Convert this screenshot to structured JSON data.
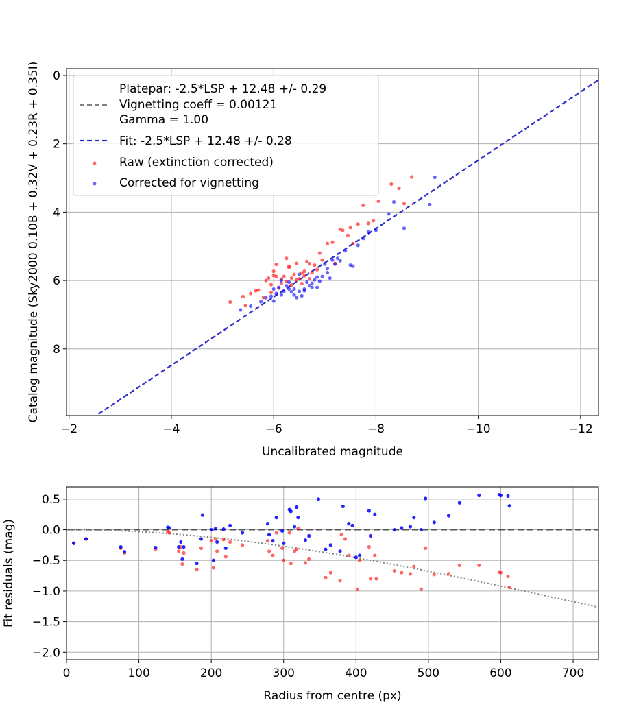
{
  "chart_data": [
    {
      "type": "scatter",
      "title": "",
      "xlabel": "Uncalibrated magnitude",
      "ylabel": "Catalog magnitude (Sky2000 0.10B + 0.32V + 0.23R + 0.35I)",
      "xlim": [
        -1.95,
        -12.35
      ],
      "ylim": [
        9.95,
        -0.2
      ],
      "x_inverted": true,
      "y_inverted": true,
      "grid": true,
      "legend_position": "upper-left",
      "xticks": [
        -2,
        -4,
        -6,
        -8,
        -10,
        -12
      ],
      "xtick_labels": [
        "−2",
        "−4",
        "−6",
        "−8",
        "−10",
        "−12"
      ],
      "yticks": [
        0,
        2,
        4,
        6,
        8
      ],
      "ytick_labels": [
        "0",
        "2",
        "4",
        "6",
        "8"
      ],
      "legend": [
        {
          "label": "Platepar: -2.5*LSP + 12.48 +/- 0.29",
          "kind": "none"
        },
        {
          "label": "Vignetting coeff = 0.00121",
          "kind": "line",
          "color": "#808080",
          "dash": "7,4"
        },
        {
          "label": "Gamma = 1.00",
          "kind": "none"
        },
        {
          "label": "Fit: -2.5*LSP + 12.48 +/- 0.28",
          "kind": "line",
          "color": "#2f2fd2",
          "dash": "7,4"
        },
        {
          "label": "Raw (extinction corrected)",
          "kind": "marker",
          "color": "#ff0000"
        },
        {
          "label": "Corrected for vignetting",
          "kind": "marker",
          "color": "#0000ff"
        }
      ],
      "lines": [
        {
          "name": "Platepar",
          "slope": 1,
          "intercept": 12.48,
          "color": "#808080",
          "dash": "7,4"
        },
        {
          "name": "Fit",
          "slope": 1,
          "intercept": 12.48,
          "color": "#2f2fd2",
          "dash": "7,4"
        }
      ],
      "series": [
        {
          "name": "Raw (extinction corrected)",
          "color": "#ff0000",
          "points": [
            [
              -5.15,
              6.63
            ],
            [
              -5.4,
              6.47
            ],
            [
              -5.45,
              6.73
            ],
            [
              -5.55,
              6.38
            ],
            [
              -5.65,
              6.3
            ],
            [
              -5.7,
              6.28
            ],
            [
              -5.8,
              6.5
            ],
            [
              -5.85,
              6.0
            ],
            [
              -5.9,
              5.93
            ],
            [
              -5.95,
              6.12
            ],
            [
              -6.0,
              5.73
            ],
            [
              -6.0,
              5.85
            ],
            [
              -6.05,
              5.53
            ],
            [
              -6.1,
              6.22
            ],
            [
              -6.15,
              5.96
            ],
            [
              -6.2,
              5.88
            ],
            [
              -6.25,
              5.35
            ],
            [
              -6.3,
              5.62
            ],
            [
              -6.3,
              5.58
            ],
            [
              -6.35,
              5.93
            ],
            [
              -6.4,
              5.82
            ],
            [
              -6.45,
              5.5
            ],
            [
              -6.5,
              5.95
            ],
            [
              -6.55,
              6.09
            ],
            [
              -6.6,
              5.73
            ],
            [
              -6.65,
              5.44
            ],
            [
              -6.7,
              5.51
            ],
            [
              -6.75,
              5.77
            ],
            [
              -6.8,
              5.55
            ],
            [
              -6.85,
              5.68
            ],
            [
              -6.9,
              5.2
            ],
            [
              -6.95,
              5.4
            ],
            [
              -7.05,
              4.92
            ],
            [
              -7.15,
              4.88
            ],
            [
              -7.2,
              5.5
            ],
            [
              -7.3,
              4.5
            ],
            [
              -7.35,
              4.53
            ],
            [
              -7.45,
              4.68
            ],
            [
              -7.5,
              4.45
            ],
            [
              -7.55,
              4.92
            ],
            [
              -7.65,
              4.35
            ],
            [
              -7.75,
              3.8
            ],
            [
              -7.85,
              4.33
            ],
            [
              -7.95,
              4.25
            ],
            [
              -8.05,
              3.68
            ],
            [
              -8.3,
              3.18
            ],
            [
              -8.45,
              3.3
            ],
            [
              -8.55,
              3.75
            ],
            [
              -8.7,
              2.97
            ],
            [
              -6.15,
              6.08
            ],
            [
              -6.35,
              6.13
            ],
            [
              -6.45,
              5.98
            ],
            [
              -6.6,
              5.86
            ],
            [
              -6.7,
              5.95
            ],
            [
              -6.25,
              6.03
            ],
            [
              -5.95,
              6.35
            ],
            [
              -6.05,
              5.88
            ],
            [
              -6.55,
              5.78
            ]
          ]
        },
        {
          "name": "Corrected for vignetting",
          "color": "#0000ff",
          "points": [
            [
              -5.35,
              6.86
            ],
            [
              -5.55,
              6.75
            ],
            [
              -5.75,
              6.62
            ],
            [
              -5.85,
              6.5
            ],
            [
              -5.95,
              6.46
            ],
            [
              -6.0,
              6.6
            ],
            [
              -6.05,
              6.38
            ],
            [
              -6.1,
              6.2
            ],
            [
              -6.15,
              6.0
            ],
            [
              -6.2,
              6.32
            ],
            [
              -6.25,
              6.15
            ],
            [
              -6.3,
              6.25
            ],
            [
              -6.35,
              6.33
            ],
            [
              -6.4,
              6.42
            ],
            [
              -6.45,
              6.5
            ],
            [
              -6.5,
              6.32
            ],
            [
              -6.5,
              5.82
            ],
            [
              -6.55,
              6.45
            ],
            [
              -6.6,
              6.25
            ],
            [
              -6.65,
              6.05
            ],
            [
              -6.7,
              6.15
            ],
            [
              -6.75,
              6.08
            ],
            [
              -6.8,
              5.98
            ],
            [
              -6.85,
              6.2
            ],
            [
              -6.9,
              6.02
            ],
            [
              -6.95,
              5.88
            ],
            [
              -7.0,
              5.52
            ],
            [
              -7.05,
              5.77
            ],
            [
              -7.1,
              5.93
            ],
            [
              -7.15,
              5.4
            ],
            [
              -7.2,
              5.52
            ],
            [
              -7.25,
              5.35
            ],
            [
              -7.3,
              5.42
            ],
            [
              -7.4,
              5.13
            ],
            [
              -7.5,
              5.55
            ],
            [
              -7.55,
              5.58
            ],
            [
              -7.65,
              4.97
            ],
            [
              -7.75,
              4.77
            ],
            [
              -7.85,
              4.58
            ],
            [
              -8.0,
              4.53
            ],
            [
              -8.25,
              4.05
            ],
            [
              -8.35,
              3.7
            ],
            [
              -8.55,
              4.47
            ],
            [
              -9.05,
              3.78
            ],
            [
              -9.15,
              2.98
            ],
            [
              -6.3,
              6.05
            ],
            [
              -6.4,
              6.25
            ],
            [
              -6.6,
              6.3
            ],
            [
              -6.15,
              6.42
            ],
            [
              -6.75,
              6.2
            ],
            [
              -6.0,
              6.25
            ],
            [
              -6.85,
              5.9
            ],
            [
              -7.05,
              5.65
            ]
          ]
        }
      ]
    },
    {
      "type": "scatter",
      "title": "",
      "xlabel": "Radius from centre (px)",
      "ylabel": "Fit residuals (mag)",
      "xlim": [
        0,
        735
      ],
      "ylim": [
        -2.12,
        0.7
      ],
      "grid": true,
      "xticks": [
        0,
        100,
        200,
        300,
        400,
        500,
        600,
        700
      ],
      "xtick_labels": [
        "0",
        "100",
        "200",
        "300",
        "400",
        "500",
        "600",
        "700"
      ],
      "yticks": [
        0.5,
        0.0,
        -0.5,
        -1.0,
        -1.5,
        -2.0
      ],
      "ytick_labels": [
        "0.5",
        "0.0",
        "−0.5",
        "−1.0",
        "−1.5",
        "−2.0"
      ],
      "lines": [
        {
          "name": "zero",
          "type": "hline",
          "y": 0,
          "color": "#555555",
          "dash": "9,5"
        },
        {
          "name": "vignetting",
          "type": "curve",
          "coeff": 0.00121,
          "color": "#808080",
          "dash": "2,3"
        }
      ],
      "series": [
        {
          "name": "Raw (extinction corrected)",
          "color": "#ff0000",
          "points": [
            [
              10,
              -0.22
            ],
            [
              27,
              -0.15
            ],
            [
              75,
              -0.3
            ],
            [
              80,
              -0.38
            ],
            [
              123,
              -0.32
            ],
            [
              140,
              -0.03
            ],
            [
              142,
              -0.05
            ],
            [
              155,
              -0.35
            ],
            [
              158,
              -0.28
            ],
            [
              160,
              -0.56
            ],
            [
              162,
              -0.38
            ],
            [
              180,
              -0.65
            ],
            [
              186,
              -0.3
            ],
            [
              200,
              -0.18
            ],
            [
              203,
              -0.62
            ],
            [
              206,
              -0.15
            ],
            [
              208,
              -0.35
            ],
            [
              217,
              -0.16
            ],
            [
              220,
              -0.44
            ],
            [
              226,
              -0.2
            ],
            [
              243,
              -0.25
            ],
            [
              278,
              -0.18
            ],
            [
              280,
              -0.35
            ],
            [
              285,
              -0.42
            ],
            [
              290,
              -0.05
            ],
            [
              298,
              -0.3
            ],
            [
              300,
              -0.5
            ],
            [
              308,
              -0.05
            ],
            [
              310,
              -0.55
            ],
            [
              315,
              -0.35
            ],
            [
              318,
              -0.32
            ],
            [
              320,
              0.02
            ],
            [
              330,
              -0.54
            ],
            [
              335,
              -0.48
            ],
            [
              358,
              -0.78
            ],
            [
              365,
              -0.7
            ],
            [
              378,
              -0.83
            ],
            [
              380,
              -0.08
            ],
            [
              385,
              -0.15
            ],
            [
              390,
              -0.42
            ],
            [
              402,
              -0.97
            ],
            [
              405,
              -0.5
            ],
            [
              418,
              -0.28
            ],
            [
              420,
              -0.8
            ],
            [
              426,
              -0.42
            ],
            [
              428,
              -0.8
            ],
            [
              453,
              -0.67
            ],
            [
              463,
              -0.7
            ],
            [
              475,
              -0.72
            ],
            [
              480,
              -0.6
            ],
            [
              490,
              -0.97
            ],
            [
              496,
              -0.3
            ],
            [
              508,
              -0.73
            ],
            [
              528,
              -0.72
            ],
            [
              543,
              -0.58
            ],
            [
              570,
              -0.58
            ],
            [
              598,
              -0.69
            ],
            [
              600,
              -0.7
            ],
            [
              610,
              -0.76
            ],
            [
              612,
              -0.94
            ]
          ]
        },
        {
          "name": "Corrected for vignetting",
          "color": "#0000ff",
          "points": [
            [
              10,
              -0.22
            ],
            [
              27,
              -0.15
            ],
            [
              75,
              -0.28
            ],
            [
              80,
              -0.36
            ],
            [
              123,
              -0.29
            ],
            [
              140,
              0.04
            ],
            [
              142,
              0.03
            ],
            [
              155,
              -0.28
            ],
            [
              158,
              -0.2
            ],
            [
              160,
              -0.48
            ],
            [
              162,
              -0.28
            ],
            [
              180,
              -0.55
            ],
            [
              186,
              -0.15
            ],
            [
              188,
              0.24
            ],
            [
              200,
              0.0
            ],
            [
              203,
              -0.5
            ],
            [
              206,
              0.02
            ],
            [
              208,
              -0.2
            ],
            [
              217,
              0.01
            ],
            [
              220,
              -0.3
            ],
            [
              226,
              0.07
            ],
            [
              243,
              -0.05
            ],
            [
              278,
              0.1
            ],
            [
              280,
              -0.08
            ],
            [
              285,
              -0.18
            ],
            [
              290,
              0.2
            ],
            [
              298,
              -0.02
            ],
            [
              300,
              -0.22
            ],
            [
              308,
              0.33
            ],
            [
              310,
              0.3
            ],
            [
              315,
              0.05
            ],
            [
              318,
              0.37
            ],
            [
              320,
              0.2
            ],
            [
              330,
              -0.17
            ],
            [
              335,
              -0.1
            ],
            [
              348,
              0.5
            ],
            [
              358,
              -0.32
            ],
            [
              365,
              -0.25
            ],
            [
              378,
              -0.35
            ],
            [
              382,
              0.38
            ],
            [
              390,
              0.1
            ],
            [
              395,
              0.07
            ],
            [
              400,
              -0.45
            ],
            [
              405,
              -0.42
            ],
            [
              418,
              0.31
            ],
            [
              420,
              -0.1
            ],
            [
              426,
              0.25
            ],
            [
              453,
              0.0
            ],
            [
              463,
              0.03
            ],
            [
              475,
              0.05
            ],
            [
              480,
              0.2
            ],
            [
              490,
              0.0
            ],
            [
              496,
              0.51
            ],
            [
              508,
              0.12
            ],
            [
              528,
              0.23
            ],
            [
              543,
              0.44
            ],
            [
              570,
              0.56
            ],
            [
              598,
              0.57
            ],
            [
              600,
              0.56
            ],
            [
              610,
              0.55
            ],
            [
              612,
              0.39
            ]
          ]
        }
      ]
    }
  ]
}
